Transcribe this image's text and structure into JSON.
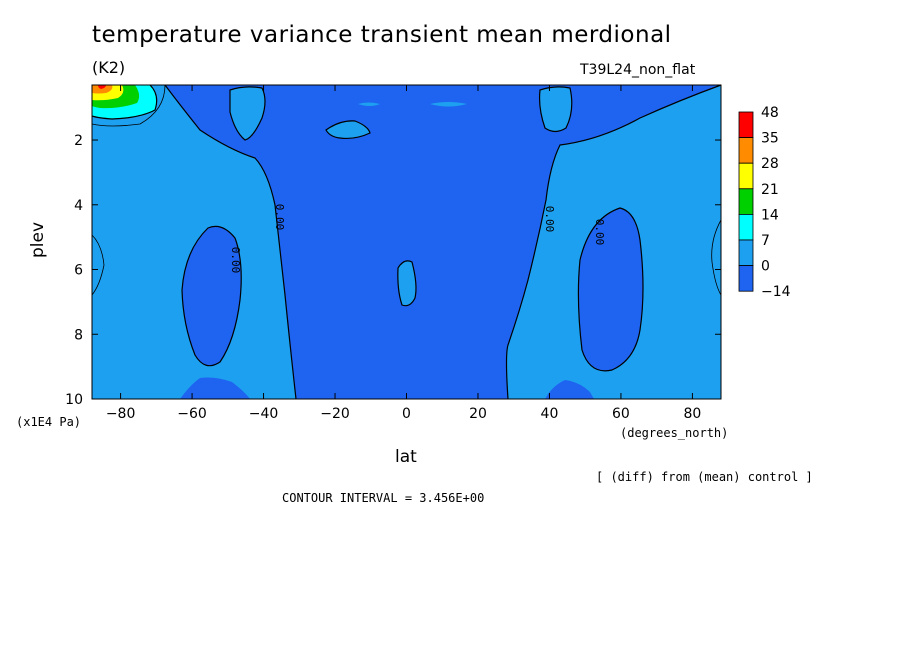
{
  "chart_data": {
    "type": "contour",
    "title": "temperature variance transient mean merdional",
    "units": "(K2)",
    "experiment": "T39L24_non_flat",
    "xlabel": "lat",
    "ylabel": "plev",
    "x_units": "(degrees_north)",
    "y_units": "(x1E4 Pa)",
    "x_ticks": [
      "-80",
      "-60",
      "-40",
      "-20",
      "0",
      "20",
      "40",
      "60",
      "80"
    ],
    "y_ticks": [
      "2",
      "4",
      "6",
      "8",
      "10"
    ],
    "xlim": [
      -88,
      88
    ],
    "ylim": [
      0.3,
      10
    ],
    "y_inverted": true,
    "contour_labels": [
      "0.00",
      "0.00",
      "0.00",
      "0.00"
    ],
    "contour_interval_text": "CONTOUR INTERVAL = 3.456E+00",
    "note": "[ (diff) from (mean) control ]",
    "colorbar": {
      "levels": [
        "48",
        "35",
        "28",
        "21",
        "14",
        "7",
        "0",
        "-14"
      ],
      "colors": [
        "#ff0000",
        "#ff8c00",
        "#ffff00",
        "#00d000",
        "#00ffff",
        "#1ea0f0",
        "#1e64f0"
      ]
    },
    "region_colors": {
      "negative": "#1e64f0",
      "low_positive": "#1ea0f0",
      "max_area_green": "#00d000",
      "max_area_yellow": "#ffff00",
      "max_area_orange": "#ff8c00",
      "max_area_red": "#ff0000"
    },
    "features": [
      {
        "lat": -85,
        "plev": 0.4,
        "value": 48,
        "description": "maximum near top-left corner"
      }
    ]
  }
}
